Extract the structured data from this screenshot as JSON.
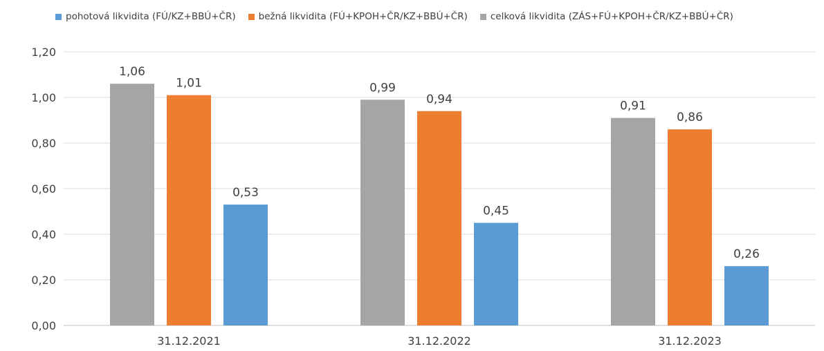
{
  "chart_data": {
    "type": "bar",
    "categories": [
      "31.12.2021",
      "31.12.2022",
      "31.12.2023"
    ],
    "series": [
      {
        "name": "celková likvidita (ZÁS+FÚ+KPOH+ČR/KZ+BBÚ+ČR)",
        "color": "#a5a5a5",
        "values": [
          1.06,
          0.99,
          0.91
        ],
        "labels": [
          "1,06",
          "0,99",
          "0,91"
        ]
      },
      {
        "name": "bežná likvidita (FÚ+KPOH+ČR/KZ+BBÚ+ČR)",
        "color": "#ed7d31",
        "values": [
          1.01,
          0.94,
          0.86
        ],
        "labels": [
          "1,01",
          "0,94",
          "0,86"
        ]
      },
      {
        "name": "pohotová likvidita (FÚ/KZ+BBÚ+ČR)",
        "color": "#5b9bd5",
        "values": [
          0.53,
          0.45,
          0.26
        ],
        "labels": [
          "0,53",
          "0,45",
          "0,26"
        ]
      }
    ],
    "legend_order": [
      2,
      1,
      0
    ],
    "legend_position": "top",
    "ylim": [
      0,
      1.2
    ],
    "yticks": [
      0,
      0.2,
      0.4,
      0.6,
      0.8,
      1.0,
      1.2
    ],
    "ytick_labels": [
      "0,00",
      "0,20",
      "0,40",
      "0,60",
      "0,80",
      "1,00",
      "1,20"
    ],
    "grid": true,
    "title": "",
    "xlabel": "",
    "ylabel": ""
  }
}
